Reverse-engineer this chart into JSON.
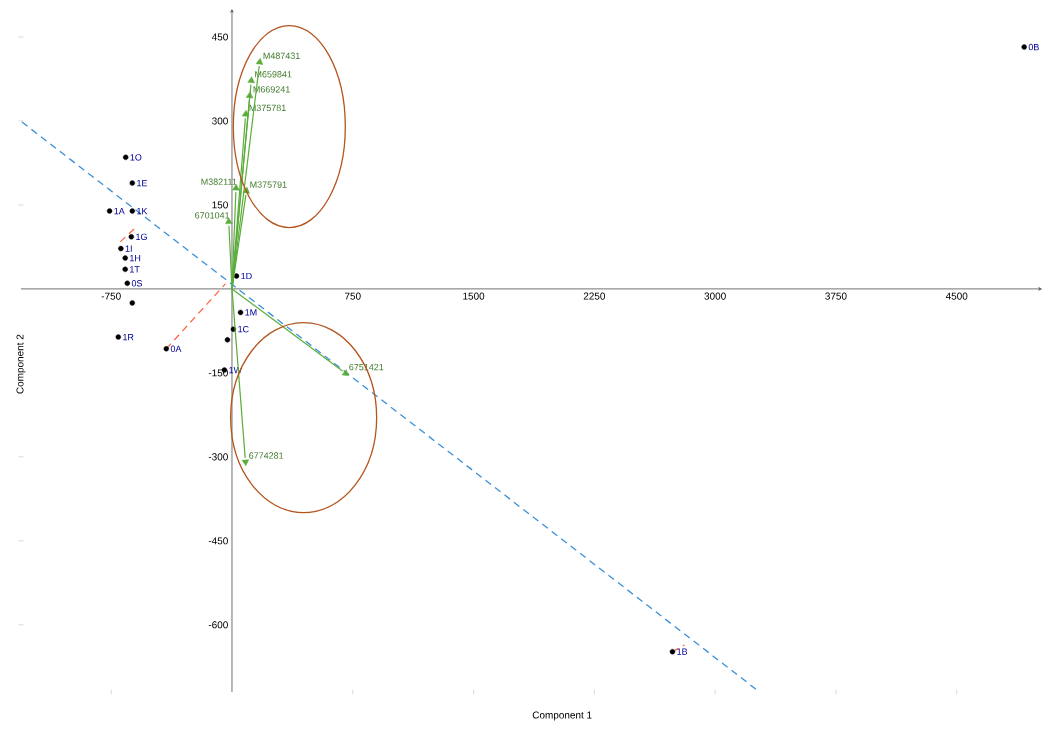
{
  "chart_data": {
    "type": "scatter",
    "xlabel": "Component 1",
    "ylabel": "Component 2",
    "xlim": [
      -1310,
      5030
    ],
    "ylim": [
      -720,
      500
    ],
    "xticks": [
      -750,
      750,
      1500,
      2250,
      3000,
      3750,
      4500
    ],
    "yticks": [
      -600,
      -450,
      -300,
      -150,
      150,
      300,
      450
    ],
    "grid": false,
    "series": [
      {
        "marker": "triangle",
        "color": "#5aad3a",
        "x": [
          172,
          120,
          110,
          85,
          90,
          25,
          -20,
          706,
          84
        ],
        "values": [
          405,
          372,
          345,
          312,
          175,
          180,
          120,
          -151,
          -309
        ]
      },
      {
        "type": "line",
        "line_style": "dashed",
        "color": "#3a8fd8",
        "x": [
          -1304,
          3258
        ],
        "values": [
          298,
          -716
        ]
      },
      {
        "type": "line",
        "line_style": "dashed",
        "color": "#ff6644",
        "x": [
          -408,
          -41,
          null,
          2735,
          2810,
          null,
          -694,
          -600
        ],
        "values": [
          -107,
          9,
          null,
          -648,
          -636,
          null,
          84,
          109
        ]
      },
      {
        "marker": "circle",
        "color": "#000000",
        "x": [
          4919,
          2735,
          -706,
          -408,
          -660,
          -619,
          -760,
          -619,
          -625,
          -690,
          -663,
          -663,
          -650,
          -619,
          28,
          53,
          9,
          -28,
          -47
        ],
        "values": [
          432,
          -648,
          -86,
          -107,
          235,
          189,
          139,
          139,
          93,
          72,
          55,
          35,
          10,
          -25,
          23,
          -42,
          -72,
          -91,
          -145
        ]
      }
    ],
    "annotations": [
      {
        "text": "0B",
        "x": 4919,
        "y": 432
      },
      {
        "text": "1B",
        "x": 2735,
        "y": -648
      },
      {
        "text": "1R",
        "x": -706,
        "y": -86
      },
      {
        "text": "0A",
        "x": -408,
        "y": -107
      },
      {
        "text": "1O",
        "x": -660,
        "y": 235
      },
      {
        "text": "1E",
        "x": -619,
        "y": 189
      },
      {
        "text": "1A",
        "x": -760,
        "y": 139
      },
      {
        "text": "1K",
        "x": -619,
        "y": 139
      },
      {
        "text": "1G",
        "x": -625,
        "y": 93
      },
      {
        "text": "1I",
        "x": -690,
        "y": 72
      },
      {
        "text": "1H",
        "x": -663,
        "y": 55
      },
      {
        "text": "1T",
        "x": -663,
        "y": 35
      },
      {
        "text": "0S",
        "x": -650,
        "y": 10
      },
      {
        "text": "1D",
        "x": 28,
        "y": 23
      },
      {
        "text": "1M",
        "x": 53,
        "y": -42
      },
      {
        "text": "1C",
        "x": 9,
        "y": -72
      },
      {
        "text": "1W",
        "x": -47,
        "y": -145
      },
      {
        "text": "M487431",
        "x": 172,
        "y": 405
      },
      {
        "text": "M659841",
        "x": 120,
        "y": 372
      },
      {
        "text": "M669241",
        "x": 110,
        "y": 345
      },
      {
        "text": "M375781",
        "x": 85,
        "y": 312
      },
      {
        "text": "M375791",
        "x": 90,
        "y": 175
      },
      {
        "text": "M382111",
        "x": 25,
        "y": 180
      },
      {
        "text": "6701041",
        "x": -20,
        "y": 120
      },
      {
        "text": "6751421",
        "x": 706,
        "y": -151
      },
      {
        "text": "6774281",
        "x": 84,
        "y": -309
      }
    ]
  }
}
